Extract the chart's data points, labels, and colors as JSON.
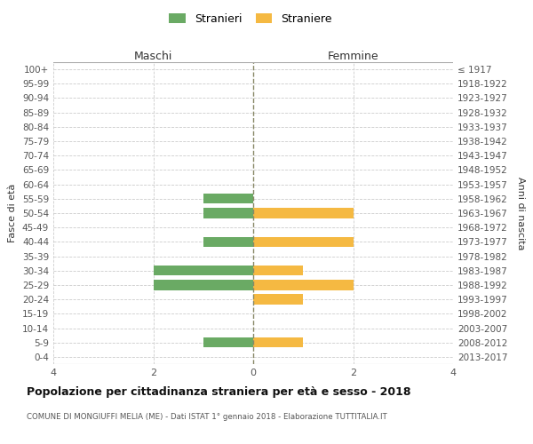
{
  "age_groups": [
    "100+",
    "95-99",
    "90-94",
    "85-89",
    "80-84",
    "75-79",
    "70-74",
    "65-69",
    "60-64",
    "55-59",
    "50-54",
    "45-49",
    "40-44",
    "35-39",
    "30-34",
    "25-29",
    "20-24",
    "15-19",
    "10-14",
    "5-9",
    "0-4"
  ],
  "birth_years": [
    "≤ 1917",
    "1918-1922",
    "1923-1927",
    "1928-1932",
    "1933-1937",
    "1938-1942",
    "1943-1947",
    "1948-1952",
    "1953-1957",
    "1958-1962",
    "1963-1967",
    "1968-1972",
    "1973-1977",
    "1978-1982",
    "1983-1987",
    "1988-1992",
    "1993-1997",
    "1998-2002",
    "2003-2007",
    "2008-2012",
    "2013-2017"
  ],
  "males": [
    0,
    0,
    0,
    0,
    0,
    0,
    0,
    0,
    0,
    1,
    1,
    0,
    1,
    0,
    2,
    2,
    0,
    0,
    0,
    1,
    0
  ],
  "females": [
    0,
    0,
    0,
    0,
    0,
    0,
    0,
    0,
    0,
    0,
    2,
    0,
    2,
    0,
    1,
    2,
    1,
    0,
    0,
    1,
    0
  ],
  "color_males": "#6aaa64",
  "color_females": "#f5b942",
  "color_grid": "#cccccc",
  "color_center_line": "#888866",
  "xlim": 4,
  "xticks": [
    -4,
    -2,
    0,
    2,
    4
  ],
  "xticklabels": [
    "4",
    "2",
    "0",
    "2",
    "4"
  ],
  "title_main": "Popolazione per cittadinanza straniera per età e sesso - 2018",
  "title_sub": "COMUNE DI MONGIUFFI MELIA (ME) - Dati ISTAT 1° gennaio 2018 - Elaborazione TUTTITALIA.IT",
  "label_males_header": "Maschi",
  "label_females_header": "Femmine",
  "label_fasce": "Fasce di età",
  "label_anni": "Anni di nascita",
  "legend_stranieri": "Stranieri",
  "legend_straniere": "Straniere",
  "bar_height": 0.7,
  "background_color": "#ffffff"
}
